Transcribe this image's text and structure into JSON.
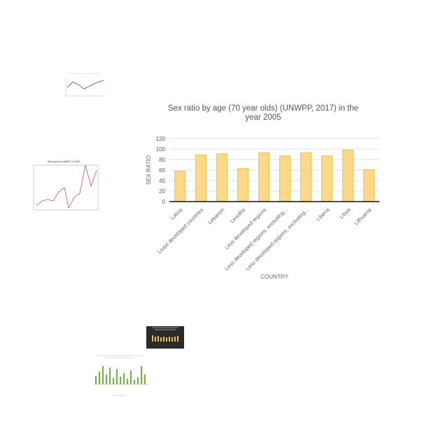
{
  "chart_data": {
    "type": "bar",
    "title": "Sex ratio by age (70 year olds) (UNWPP, 2017) in the year 2005",
    "xlabel": "COUNTRY",
    "ylabel": "SEX RATIO",
    "categories": [
      "Latvia",
      "Least developed countries",
      "Lebanon",
      "Lesotho",
      "Less developed regions",
      "Less developed regions, excluding...",
      "Less developed regions, excluding...",
      "Liberia",
      "Libya",
      "Lithuania"
    ],
    "values": [
      58,
      89,
      91,
      63,
      93,
      87,
      93,
      87,
      98,
      61
    ],
    "ylim": [
      0,
      120
    ],
    "yticks": [
      0,
      20,
      40,
      60,
      80,
      100,
      120
    ],
    "grid": true,
    "colors": {
      "bar_fill": "#fcd88a",
      "bar_stroke": "#f2c042",
      "axis": "#111111",
      "grid": "#d9d9d9",
      "text": "#666666"
    }
  },
  "thumbnails": {
    "stock_title": "Stock price of AMRC in 2005",
    "dark_title": "Sex ratio by age (20 year olds) (UNWPP, 2017) in the year 2005"
  }
}
